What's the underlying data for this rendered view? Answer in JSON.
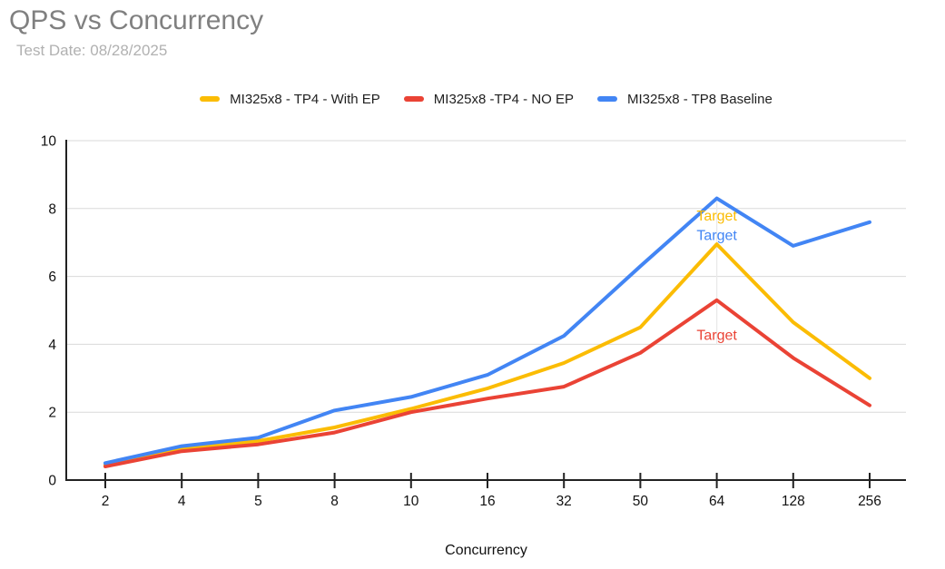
{
  "title": "QPS vs Concurrency",
  "subtitle": "Test Date: 08/28/2025",
  "chart_data": {
    "type": "line",
    "title": "QPS vs Concurrency",
    "subtitle": "Test Date: 08/28/2025",
    "xlabel": "Concurrency",
    "ylabel": "",
    "ylim": [
      0,
      10
    ],
    "y_ticks": [
      0,
      2,
      4,
      6,
      8,
      10
    ],
    "grid": true,
    "legend_position": "top",
    "categories": [
      "2",
      "4",
      "5",
      "8",
      "10",
      "16",
      "32",
      "50",
      "64",
      "128",
      "256"
    ],
    "series": [
      {
        "name": "MI325x8 - TP4 - With EP",
        "color": "#FBBC04",
        "values": [
          0.45,
          0.9,
          1.15,
          1.55,
          2.1,
          2.7,
          3.45,
          4.5,
          6.95,
          4.65,
          3.0
        ]
      },
      {
        "name": "MI325x8 -TP4 - NO EP",
        "color": "#EA4335",
        "values": [
          0.4,
          0.85,
          1.05,
          1.4,
          2.0,
          2.4,
          2.75,
          3.75,
          5.3,
          3.6,
          2.2
        ]
      },
      {
        "name": "MI325x8 - TP8 Baseline",
        "color": "#4285F4",
        "values": [
          0.5,
          1.0,
          1.25,
          2.05,
          2.45,
          3.1,
          4.25,
          6.3,
          8.3,
          6.9,
          7.6
        ]
      }
    ],
    "annotations": [
      {
        "label": "Target",
        "color": "#FBBC04",
        "x_category": "64",
        "y_value": 7.8
      },
      {
        "label": "Target",
        "color": "#4285F4",
        "x_category": "64",
        "y_value": 7.22
      },
      {
        "label": "Target",
        "color": "#EA4335",
        "x_category": "64",
        "y_value": 4.28
      }
    ]
  }
}
